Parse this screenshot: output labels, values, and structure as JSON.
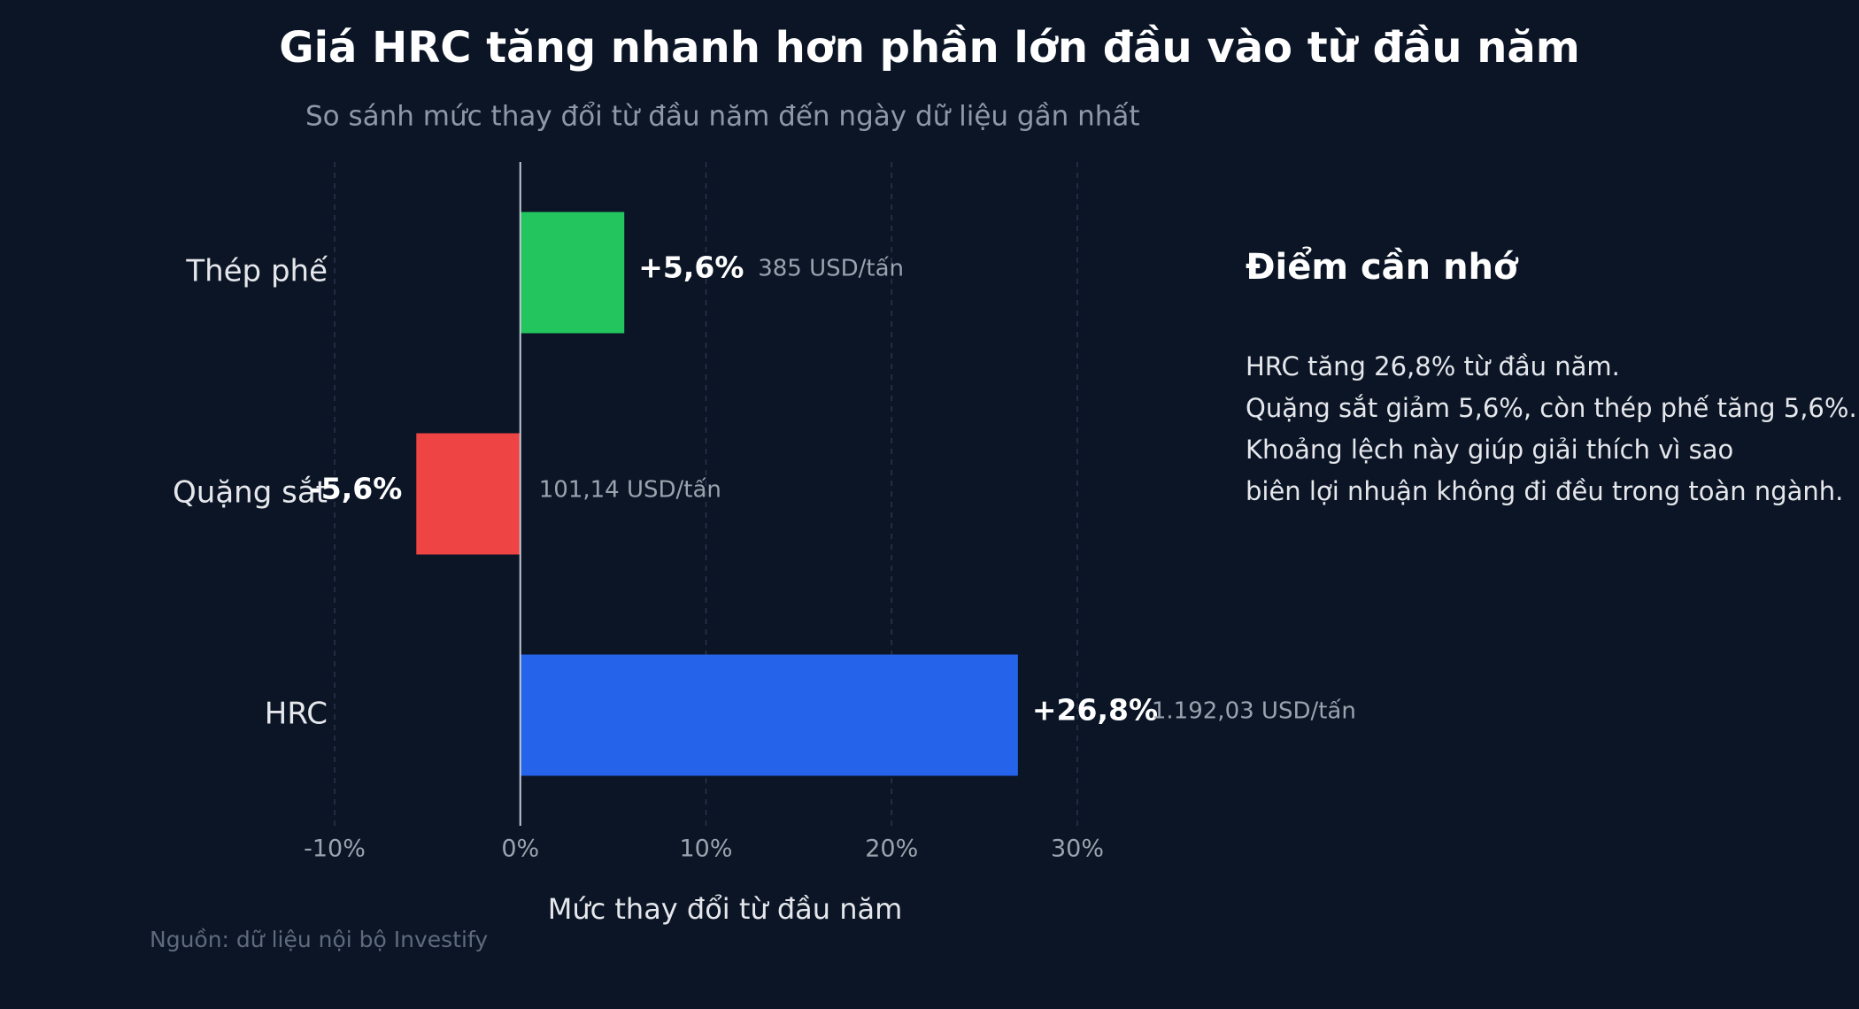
{
  "chart_data": {
    "type": "hbar",
    "title": "Giá HRC tăng nhanh hơn phần lớn đầu vào từ đầu năm",
    "subtitle": "So sánh mức thay đổi từ đầu năm đến ngày dữ liệu gần nhất",
    "categories": [
      "Thép phế",
      "Quặng sắt",
      "HRC"
    ],
    "values": [
      5.6,
      -5.6,
      26.8
    ],
    "value_labels": [
      "+5,6%",
      "-5,6%",
      "+26,8%"
    ],
    "annotations": [
      "385 USD/tấn",
      "101,14 USD/tấn",
      "1.192,03 USD/tấn"
    ],
    "colors": [
      "#22c55e",
      "#ef4444",
      "#2563eb"
    ],
    "xlim": [
      -10,
      30
    ],
    "xticks": [
      {
        "value": -10,
        "label": "-10%"
      },
      {
        "value": 0,
        "label": "0%"
      },
      {
        "value": 10,
        "label": "10%"
      },
      {
        "value": 20,
        "label": "20%"
      },
      {
        "value": 30,
        "label": "30%"
      }
    ],
    "xlabel": "Mức thay đổi từ đầu năm",
    "grid": true,
    "source": "Nguồn: dữ liệu nội bộ Investify",
    "panel": {
      "title": "Điểm cần nhớ",
      "lines": [
        "HRC tăng 26,8% từ đầu năm.",
        "Quặng sắt giảm 5,6%, còn thép phế tăng 5,6%.",
        "Khoảng lệch này giúp giải thích vì sao",
        "biên lợi nhuận không đi đều trong toàn ngành."
      ]
    }
  }
}
